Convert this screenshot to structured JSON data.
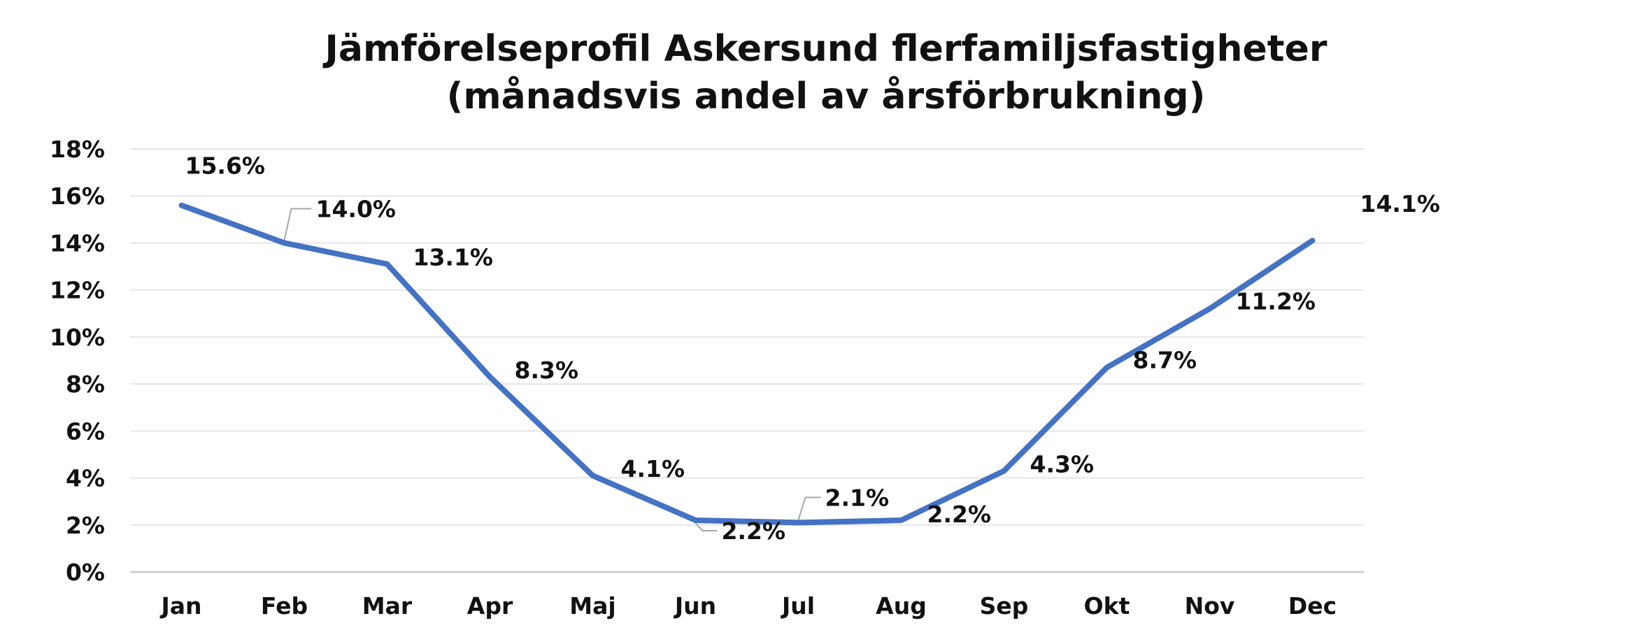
{
  "chart_data": {
    "type": "line",
    "title": "Jämförelseprofil Askersund flerfamiljsfastigheter",
    "subtitle": "(månadsvis andel av årsförbrukning)",
    "xlabel": "",
    "ylabel": "",
    "categories": [
      "Jan",
      "Feb",
      "Mar",
      "Apr",
      "Maj",
      "Jun",
      "Jul",
      "Aug",
      "Sep",
      "Okt",
      "Nov",
      "Dec"
    ],
    "series": [
      {
        "values": [
          15.6,
          14.0,
          13.1,
          8.3,
          4.1,
          2.2,
          2.1,
          2.2,
          4.3,
          8.7,
          11.2,
          14.1
        ],
        "labels": [
          "15.6%",
          "14.0%",
          "13.1%",
          "8.3%",
          "4.1%",
          "2.2%",
          "2.1%",
          "2.2%",
          "4.3%",
          "8.7%",
          "11.2%",
          "14.1%"
        ],
        "color": "#4472C4"
      }
    ],
    "ylim": [
      0,
      18
    ],
    "yticks": [
      "0%",
      "2%",
      "4%",
      "6%",
      "8%",
      "10%",
      "12%",
      "14%",
      "16%",
      "18%"
    ],
    "grid": true,
    "legend": "none",
    "colors": {
      "line": "#4472C4",
      "grid": "#e6e6e6",
      "axis": "#d0d0d0",
      "leader": "#a6a6a6"
    }
  }
}
